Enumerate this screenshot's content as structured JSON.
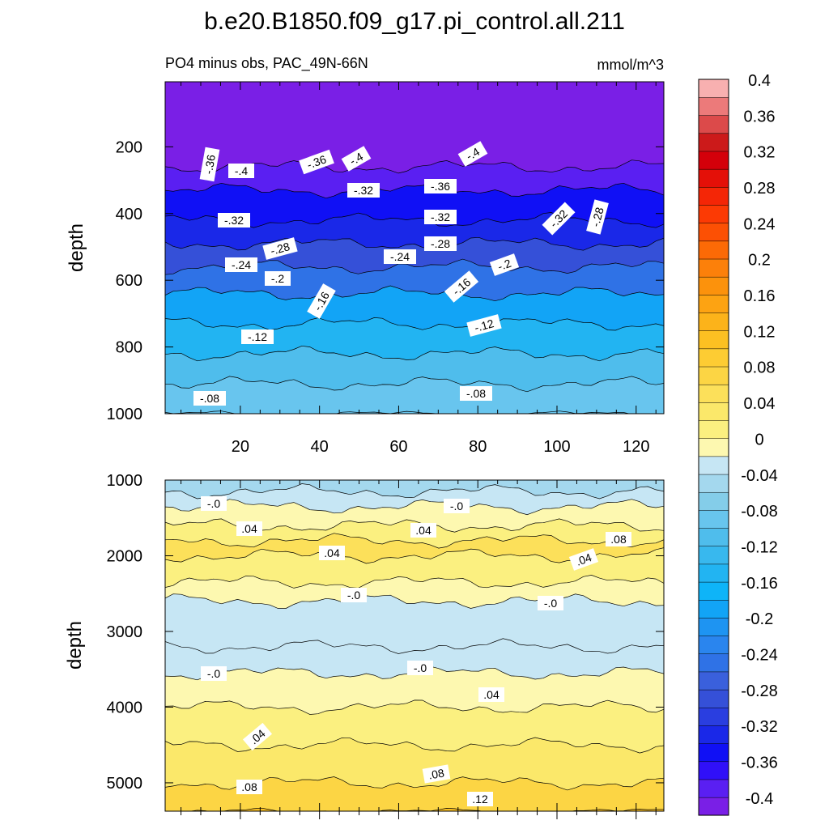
{
  "chart_data": {
    "type": "contour",
    "title": "b.e20.B1850.f09_g17.pi_control.all.211",
    "left_subtitle": "PO4 minus obs, PAC_49N-66N",
    "right_subtitle": "mmol/m^3",
    "units": "mmol/m^3",
    "colorbar": {
      "levels": [
        -0.4,
        -0.38,
        -0.36,
        -0.34,
        -0.32,
        -0.3,
        -0.28,
        -0.26,
        -0.24,
        -0.22,
        -0.2,
        -0.18,
        -0.16,
        -0.14,
        -0.12,
        -0.1,
        -0.08,
        -0.06,
        -0.04,
        -0.02,
        0,
        0.02,
        0.04,
        0.06,
        0.08,
        0.1,
        0.12,
        0.14,
        0.16,
        0.18,
        0.2,
        0.22,
        0.24,
        0.26,
        0.28,
        0.3,
        0.32,
        0.34,
        0.36,
        0.38,
        0.4
      ],
      "tick_labels": [
        "-0.4",
        "-0.36",
        "-0.32",
        "-0.28",
        "-0.24",
        "-0.2",
        "-0.16",
        "-0.12",
        "-0.08",
        "-0.04",
        "0",
        "0.04",
        "0.08",
        "0.12",
        "0.16",
        "0.2",
        "0.24",
        "0.28",
        "0.32",
        "0.36",
        "0.4"
      ],
      "colors": [
        "#7a1fe6",
        "#5a1ff2",
        "#3010f8",
        "#1010f5",
        "#1a28e8",
        "#2a3ee0",
        "#3550d8",
        "#3a60dc",
        "#2f72e6",
        "#2a85ee",
        "#1e94f2",
        "#12a4f6",
        "#0eb4f8",
        "#22b4f2",
        "#38b8ee",
        "#4fbdec",
        "#68c5ee",
        "#84cde9",
        "#a4d8ee",
        "#c6e6f4",
        "#fdf8b0",
        "#fbf080",
        "#fbe86a",
        "#fce05a",
        "#fcd544",
        "#fdcc33",
        "#fcc022",
        "#fcb31a",
        "#fda312",
        "#fc920c",
        "#fc800a",
        "#fc6a06",
        "#fc5004",
        "#fc3a04",
        "#f42606",
        "#e41008",
        "#d4000a",
        "#cc1a1a",
        "#dc4a4a",
        "#ec7a7a",
        "#f8b0b0"
      ]
    },
    "panels": [
      {
        "name": "upper",
        "xlabel": "",
        "ylabel": "depth",
        "xlim": [
          1,
          127
        ],
        "ylim": [
          1000,
          5
        ],
        "xticks": [
          "20",
          "40",
          "60",
          "80",
          "100",
          "120"
        ],
        "yticks": [
          "200",
          "400",
          "600",
          "800",
          "1000"
        ],
        "contour_labels": [
          "-.36",
          "-.4",
          "-.36",
          "-.4",
          "-.4",
          "-.32",
          "-.36",
          "-.32",
          "-.32",
          "-.28",
          "-.28",
          "-.28",
          "-.32",
          "-.24",
          "-.24",
          "-.2",
          "-.2",
          "-.16",
          "-.16",
          "-.12",
          "-.12",
          "-.08",
          "-.08"
        ],
        "bands": [
          {
            "depth": 5,
            "value": -0.4
          },
          {
            "depth": 260,
            "value": -0.38
          },
          {
            "depth": 330,
            "value": -0.34
          },
          {
            "depth": 420,
            "value": -0.31
          },
          {
            "depth": 490,
            "value": -0.28
          },
          {
            "depth": 560,
            "value": -0.23
          },
          {
            "depth": 640,
            "value": -0.17
          },
          {
            "depth": 730,
            "value": -0.13
          },
          {
            "depth": 820,
            "value": -0.1
          },
          {
            "depth": 910,
            "value": -0.08
          },
          {
            "depth": 1000,
            "value": -0.07
          }
        ]
      },
      {
        "name": "lower",
        "xlabel": "",
        "ylabel": "depth",
        "xlim": [
          1,
          127
        ],
        "ylim": [
          5375,
          1000
        ],
        "xticks": [],
        "yticks": [
          "1000",
          "2000",
          "3000",
          "4000",
          "5000"
        ],
        "contour_labels": [
          "-.0",
          "-.0",
          ".04",
          ".04",
          ".08",
          ".04",
          ".04",
          "-.0",
          "-.0",
          "-.0",
          "-.0",
          ".04",
          ".04",
          ".08",
          ".08",
          ".12"
        ],
        "bands": [
          {
            "depth": 1000,
            "value": -0.03
          },
          {
            "depth": 1150,
            "value": -0.01
          },
          {
            "depth": 1350,
            "value": 0.01
          },
          {
            "depth": 1600,
            "value": 0.03
          },
          {
            "depth": 1800,
            "value": 0.06
          },
          {
            "depth": 2000,
            "value": 0.03
          },
          {
            "depth": 2350,
            "value": 0.01
          },
          {
            "depth": 2600,
            "value": -0.01
          },
          {
            "depth": 3200,
            "value": -0.02
          },
          {
            "depth": 3550,
            "value": 0.01
          },
          {
            "depth": 4000,
            "value": 0.03
          },
          {
            "depth": 4500,
            "value": 0.05
          },
          {
            "depth": 5000,
            "value": 0.08
          },
          {
            "depth": 5375,
            "value": 0.12
          }
        ]
      }
    ]
  }
}
